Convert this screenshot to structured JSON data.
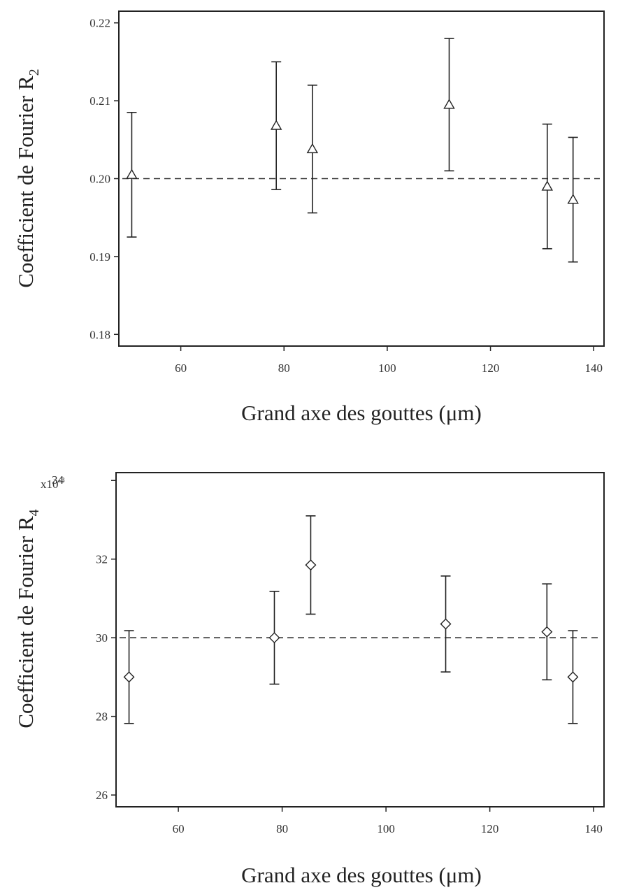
{
  "chart_data": [
    {
      "type": "scatter",
      "title": "",
      "xlabel": "Grand axe des gouttes (μm)",
      "ylabel": "Coefficient de Fourier R",
      "ylabel_subscript": "2",
      "xlim": [
        48,
        142
      ],
      "ylim": [
        0.1785,
        0.2215
      ],
      "xticks": [
        60,
        80,
        100,
        120,
        140
      ],
      "xtick_labels": [
        "60",
        "80",
        "100",
        "120",
        "140"
      ],
      "yticks": [
        0.18,
        0.19,
        0.2,
        0.21,
        0.22
      ],
      "ytick_labels": [
        "0.18",
        "0.19",
        "0.20",
        "0.21",
        "0.22"
      ],
      "y_exponent_label": "",
      "marker": "triangle",
      "reference_line": 0.2,
      "grid": false,
      "legend": "none",
      "series": [
        {
          "x": [
            50.5,
            78.5,
            85.5,
            112,
            131,
            136
          ],
          "y": [
            0.2005,
            0.2068,
            0.2038,
            0.2095,
            0.199,
            0.1973
          ],
          "yerr": [
            0.008,
            0.0082,
            0.0082,
            0.0085,
            0.008,
            0.008
          ]
        }
      ]
    },
    {
      "type": "scatter",
      "title": "",
      "xlabel": "Grand axe des gouttes (μm)",
      "ylabel": "Coefficient de Fourier R",
      "ylabel_subscript": "4",
      "xlim": [
        48,
        142
      ],
      "ylim": [
        25.7,
        34.2
      ],
      "xticks": [
        60,
        80,
        100,
        120,
        140
      ],
      "xtick_labels": [
        "60",
        "80",
        "100",
        "120",
        "140"
      ],
      "yticks": [
        26,
        28,
        30,
        32,
        34
      ],
      "ytick_labels": [
        "26",
        "28",
        "30",
        "32",
        "34"
      ],
      "y_exponent_label": "x10",
      "y_exponent_power": "-3",
      "marker": "diamond",
      "reference_line": 30.0,
      "grid": false,
      "legend": "none",
      "series": [
        {
          "x": [
            50.5,
            78.5,
            85.5,
            111.5,
            131,
            136
          ],
          "y": [
            29.0,
            30.0,
            31.85,
            30.35,
            30.15,
            29.0
          ],
          "yerr": [
            1.18,
            1.18,
            1.25,
            1.22,
            1.22,
            1.18
          ]
        }
      ]
    }
  ]
}
